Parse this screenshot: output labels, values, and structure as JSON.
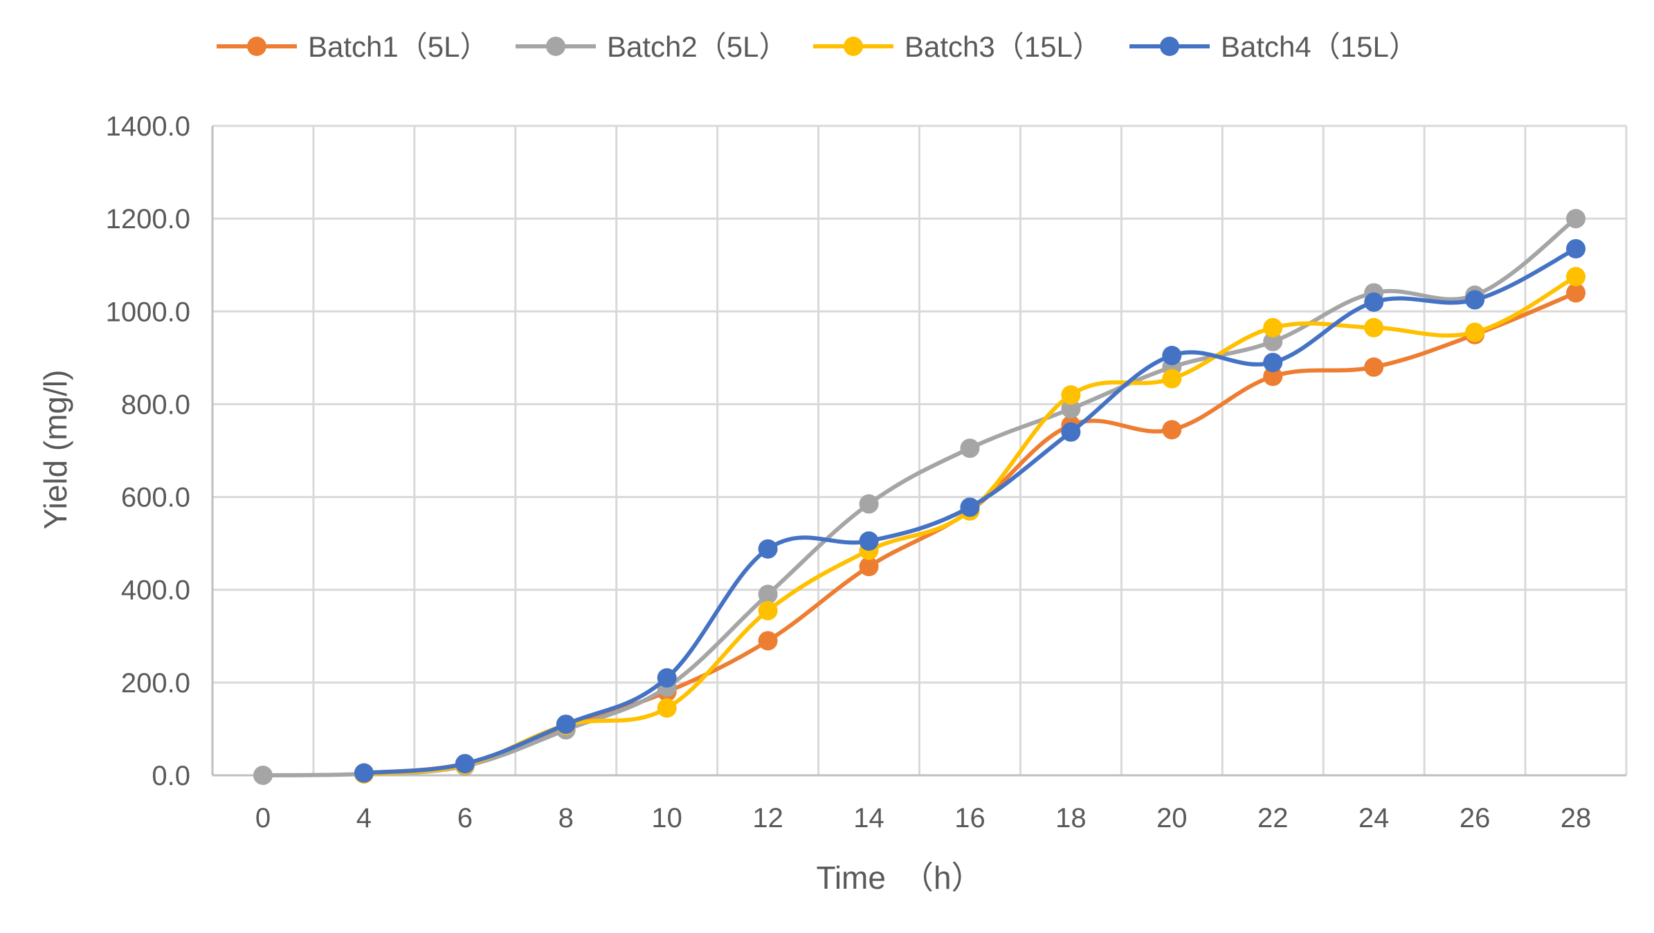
{
  "chart_data": {
    "type": "line",
    "title": "",
    "xlabel": "Time　（h）",
    "ylabel": "Yield (mg/l)",
    "categories": [
      "0",
      "4",
      "6",
      "8",
      "10",
      "12",
      "14",
      "16",
      "18",
      "20",
      "22",
      "24",
      "26",
      "28"
    ],
    "ylim": [
      0,
      1400
    ],
    "yticks": [
      "0.0",
      "200.0",
      "400.0",
      "600.0",
      "800.0",
      "1000.0",
      "1200.0",
      "1400.0"
    ],
    "grid": true,
    "legend_position": "top",
    "smoothed": true,
    "series": [
      {
        "name": "Batch1（5L）",
        "color": "#ED7D31",
        "values": [
          null,
          5,
          25,
          105,
          180,
          290,
          450,
          570,
          755,
          745,
          860,
          880,
          950,
          1040
        ]
      },
      {
        "name": "Batch2（5L）",
        "color": "#A5A5A5",
        "values": [
          0,
          3,
          20,
          98,
          190,
          390,
          585,
          705,
          790,
          880,
          935,
          1040,
          1035,
          1200
        ]
      },
      {
        "name": "Batch3（15L）",
        "color": "#FFC000",
        "values": [
          null,
          3,
          22,
          108,
          145,
          355,
          485,
          570,
          820,
          855,
          965,
          965,
          955,
          1075
        ]
      },
      {
        "name": "Batch4（15L）",
        "color": "#4472C4",
        "values": [
          null,
          5,
          25,
          110,
          210,
          488,
          505,
          578,
          740,
          905,
          890,
          1020,
          1025,
          1135
        ]
      }
    ]
  }
}
